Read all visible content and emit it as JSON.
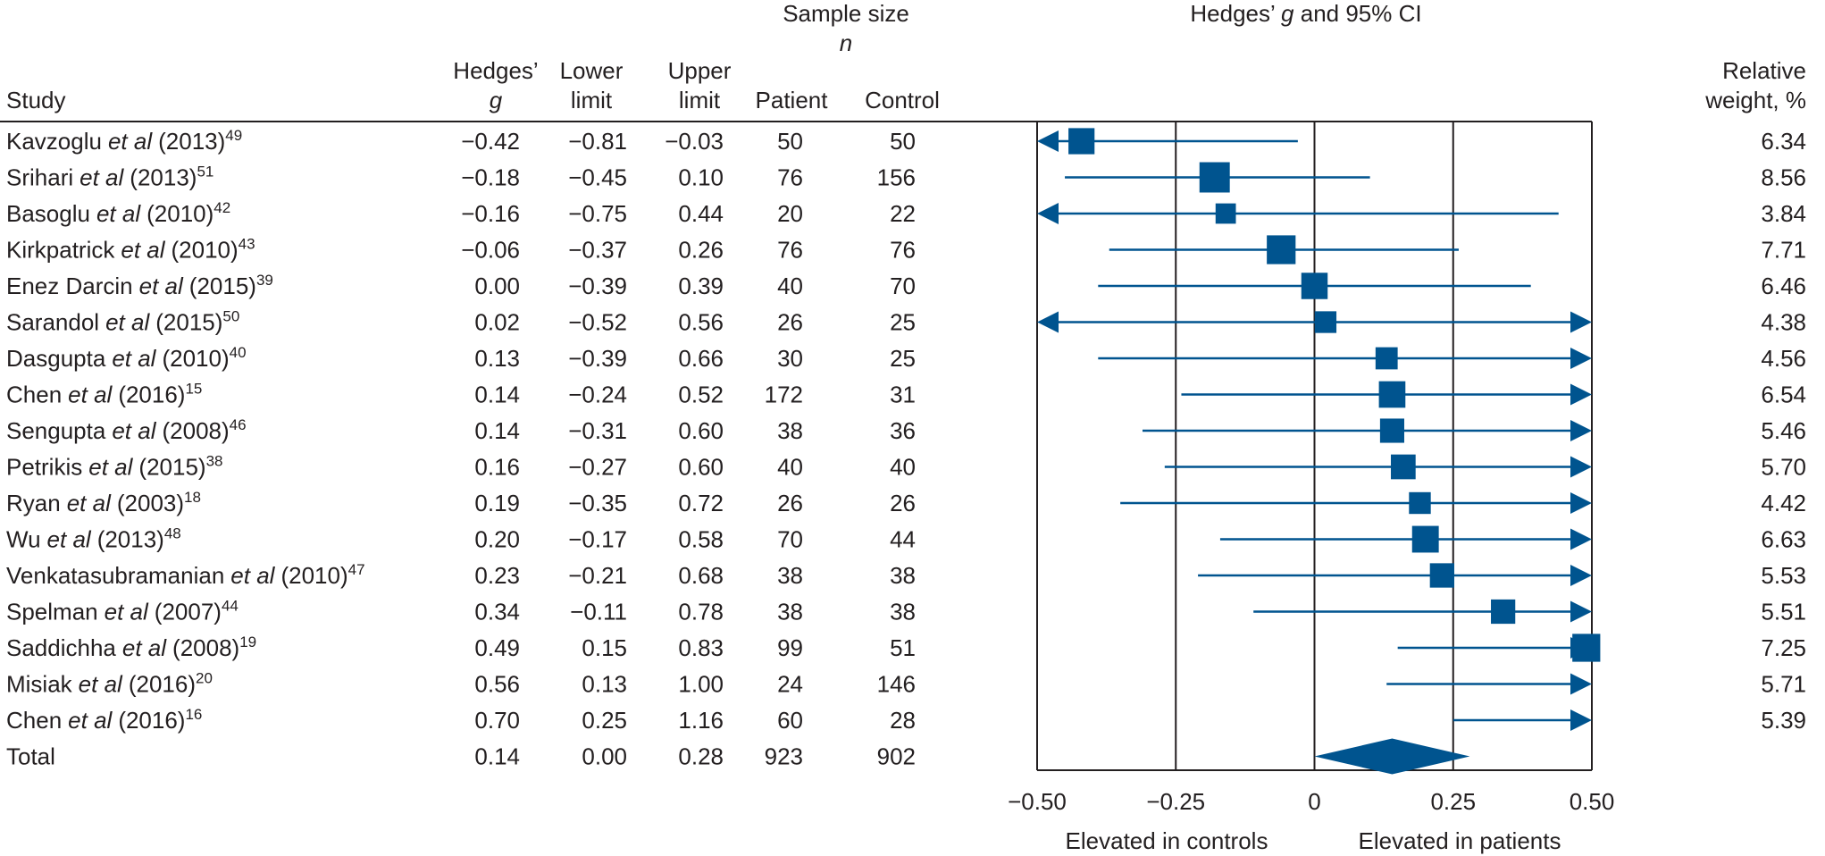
{
  "chart_data": {
    "type": "forest",
    "title": [
      "Hedges’ ",
      "g",
      " and 95% CI"
    ],
    "study_header": "Study",
    "et_al": "et al",
    "studies": [
      {
        "author": "Kavzoglu",
        "year": "(2013)",
        "ref": "49"
      },
      {
        "author": "Srihari",
        "year": "(2013)",
        "ref": "51"
      },
      {
        "author": "Basoglu",
        "year": "(2010)",
        "ref": "42"
      },
      {
        "author": "Kirkpatrick",
        "year": "(2010)",
        "ref": "43"
      },
      {
        "author": "Enez Darcin",
        "year": "(2015)",
        "ref": "39"
      },
      {
        "author": "Sarandol",
        "year": "(2015)",
        "ref": "50"
      },
      {
        "author": "Dasgupta",
        "year": "(2010)",
        "ref": "40"
      },
      {
        "author": "Chen",
        "year": "(2016)",
        "ref": "15"
      },
      {
        "author": "Sengupta",
        "year": "(2008)",
        "ref": "46"
      },
      {
        "author": "Petrikis",
        "year": "(2015)",
        "ref": "38"
      },
      {
        "author": "Ryan",
        "year": "(2003)",
        "ref": "18"
      },
      {
        "author": "Wu",
        "year": "(2013)",
        "ref": "48"
      },
      {
        "author": "Venkatasubramanian",
        "year": "(2010)",
        "ref": "47"
      },
      {
        "author": "Spelman",
        "year": "(2007)",
        "ref": "44"
      },
      {
        "author": "Saddichha",
        "year": "(2008)",
        "ref": "19"
      },
      {
        "author": "Misiak",
        "year": "(2016)",
        "ref": "20"
      },
      {
        "author": "Chen",
        "year": "(2016)",
        "ref": "16"
      }
    ],
    "columns": [
      {
        "header": [
          "Hedges’",
          "g"
        ],
        "values": [
          -0.42,
          -0.18,
          -0.16,
          -0.06,
          0.0,
          0.02,
          0.13,
          0.14,
          0.14,
          0.16,
          0.19,
          0.2,
          0.23,
          0.34,
          0.49,
          0.56,
          0.7
        ],
        "value_labels": [
          "−0.42",
          "−0.18",
          "−0.16",
          "−0.06",
          "0.00",
          "0.02",
          "0.13",
          "0.14",
          "0.14",
          "0.16",
          "0.19",
          "0.20",
          "0.23",
          "0.34",
          "0.49",
          "0.56",
          "0.70"
        ]
      },
      {
        "header": [
          "Lower",
          "limit"
        ],
        "values": [
          -0.81,
          -0.45,
          -0.75,
          -0.37,
          -0.39,
          -0.52,
          -0.39,
          -0.24,
          -0.31,
          -0.27,
          -0.35,
          -0.17,
          -0.21,
          -0.11,
          0.15,
          0.13,
          0.25
        ],
        "value_labels": [
          "−0.81",
          "−0.45",
          "−0.75",
          "−0.37",
          "−0.39",
          "−0.52",
          "−0.39",
          "−0.24",
          "−0.31",
          "−0.27",
          "−0.35",
          "−0.17",
          "−0.21",
          "−0.11",
          "0.15",
          "0.13",
          "0.25"
        ]
      },
      {
        "header": [
          "Upper",
          "limit"
        ],
        "values": [
          -0.03,
          0.1,
          0.44,
          0.26,
          0.39,
          0.56,
          0.66,
          0.52,
          0.6,
          0.6,
          0.72,
          0.58,
          0.68,
          0.78,
          0.83,
          1.0,
          1.16
        ],
        "value_labels": [
          "−0.03",
          "0.10",
          "0.44",
          "0.26",
          "0.39",
          "0.56",
          "0.66",
          "0.52",
          "0.60",
          "0.60",
          "0.72",
          "0.58",
          "0.68",
          "0.78",
          "0.83",
          "1.00",
          "1.16"
        ]
      }
    ],
    "sample_size": {
      "header": [
        "Sample size",
        "n"
      ],
      "patient": {
        "header": "Patient",
        "values": [
          50,
          76,
          20,
          76,
          40,
          26,
          30,
          172,
          38,
          40,
          26,
          70,
          38,
          38,
          99,
          24,
          60
        ]
      },
      "control": {
        "header": "Control",
        "values": [
          50,
          156,
          22,
          76,
          70,
          25,
          25,
          31,
          36,
          40,
          26,
          44,
          38,
          38,
          51,
          146,
          28
        ]
      }
    },
    "weight": {
      "header": [
        "Relative",
        "weight, %"
      ],
      "values": [
        6.34,
        8.56,
        3.84,
        7.71,
        6.46,
        4.38,
        4.56,
        6.54,
        5.46,
        5.7,
        4.42,
        6.63,
        5.53,
        5.51,
        7.25,
        5.71,
        5.39
      ],
      "value_labels": [
        "6.34",
        "8.56",
        "3.84",
        "7.71",
        "6.46",
        "4.38",
        "4.56",
        "6.54",
        "5.46",
        "5.70",
        "4.42",
        "6.63",
        "5.53",
        "5.51",
        "7.25",
        "5.71",
        "5.39"
      ]
    },
    "total": {
      "label": "Total",
      "values": [
        0.14,
        0,
        0.28
      ],
      "value_labels": [
        "0.14",
        "0.00",
        "0.28"
      ],
      "patient": 923,
      "control": 902
    },
    "xlim": [
      -0.5,
      0.5
    ],
    "xticks": [
      {
        "value": -0.5,
        "label": "−0.50"
      },
      {
        "value": -0.25,
        "label": "−0.25"
      },
      0,
      {
        "value": 0.25,
        "label": "0.25"
      },
      {
        "value": 0.5,
        "label": "0.50"
      }
    ],
    "grid": true,
    "x_annotations": [
      "Elevated in controls",
      "Elevated in patients"
    ],
    "color": "#00548f"
  }
}
